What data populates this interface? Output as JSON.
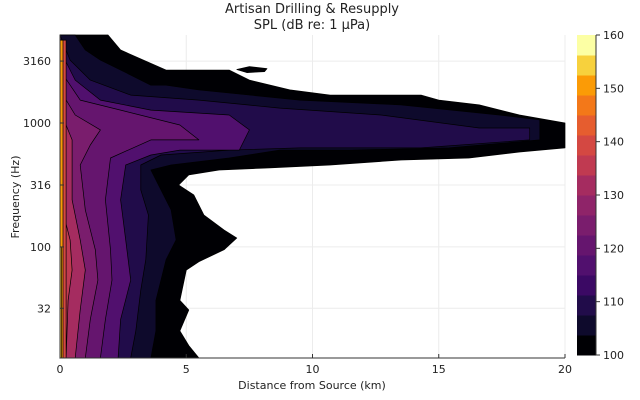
{
  "chart_data": {
    "type": "contourf",
    "title": "Artisan Drilling & Resupply",
    "subtitle": "SPL (dB re: 1 μPa)",
    "xlabel": "Distance from Source (km)",
    "ylabel": "Frequency (Hz)",
    "xlim": [
      0,
      20
    ],
    "ylim": [
      12.7,
      5130
    ],
    "yscale": "log",
    "xticks": [
      0,
      5,
      10,
      15,
      20
    ],
    "yticks": [
      32,
      100,
      316,
      1000,
      3160
    ],
    "grid": true,
    "colorbar": {
      "range": [
        100,
        160
      ],
      "ticks": [
        100,
        110,
        120,
        130,
        140,
        150,
        160
      ],
      "levels": 16,
      "colors": [
        "#000004",
        "#0e0a2c",
        "#210c4a",
        "#3b0964",
        "#51106e",
        "#65156e",
        "#7a1d6d",
        "#8f2469",
        "#a52c60",
        "#c03a51",
        "#d44842",
        "#e65d2f",
        "#f37819",
        "#fb9b06",
        "#f7d13d",
        "#fcffa4"
      ]
    },
    "regions": [
      {
        "level": 100,
        "points": [
          [
            0,
            12.7
          ],
          [
            0,
            5130
          ],
          [
            1.9,
            5130
          ],
          [
            2.4,
            3880
          ],
          [
            4.2,
            2670
          ],
          [
            6.7,
            2670
          ],
          [
            7.5,
            2220
          ],
          [
            9.1,
            1850
          ],
          [
            10.7,
            1680
          ],
          [
            14.3,
            1680
          ],
          [
            15.0,
            1530
          ],
          [
            16.6,
            1400
          ],
          [
            18.2,
            1160
          ],
          [
            20,
            1000
          ],
          [
            20,
            630
          ],
          [
            18.2,
            583
          ],
          [
            16.2,
            522
          ],
          [
            13.5,
            503
          ],
          [
            10.7,
            458
          ],
          [
            8.3,
            434
          ],
          [
            6.3,
            418
          ],
          [
            5.1,
            381
          ],
          [
            4.7,
            316
          ],
          [
            5.3,
            263
          ],
          [
            5.7,
            181
          ],
          [
            6.5,
            137
          ],
          [
            7.0,
            118
          ],
          [
            6.5,
            95
          ],
          [
            5.5,
            76
          ],
          [
            5.0,
            65
          ],
          [
            4.75,
            37
          ],
          [
            5.1,
            31
          ],
          [
            4.75,
            21
          ],
          [
            5.1,
            16
          ],
          [
            5.5,
            12.7
          ]
        ]
      },
      {
        "level": 100,
        "points": [
          [
            7.0,
            2700
          ],
          [
            7.5,
            2850
          ],
          [
            8.2,
            2750
          ],
          [
            8.1,
            2600
          ],
          [
            7.4,
            2550
          ]
        ]
      },
      {
        "level": 105,
        "points": [
          [
            0,
            12.7
          ],
          [
            0,
            5130
          ],
          [
            0.6,
            5130
          ],
          [
            1.0,
            3880
          ],
          [
            1.6,
            3220
          ],
          [
            2.8,
            2440
          ],
          [
            3.6,
            2020
          ],
          [
            4.2,
            2020
          ],
          [
            5.5,
            1850
          ],
          [
            9.5,
            1530
          ],
          [
            13.5,
            1400
          ],
          [
            17.4,
            1160
          ],
          [
            19.0,
            1060
          ],
          [
            19.0,
            730
          ],
          [
            15.4,
            630
          ],
          [
            11.5,
            605
          ],
          [
            8.7,
            605
          ],
          [
            6.7,
            522
          ],
          [
            4.4,
            458
          ],
          [
            3.6,
            418
          ],
          [
            4.0,
            288
          ],
          [
            4.4,
            199
          ],
          [
            4.6,
            114
          ],
          [
            4.2,
            79
          ],
          [
            4.0,
            54
          ],
          [
            3.8,
            37
          ],
          [
            3.8,
            21
          ],
          [
            3.6,
            12.7
          ]
        ]
      },
      {
        "level": 110,
        "points": [
          [
            0,
            12.7
          ],
          [
            0,
            5130
          ],
          [
            0.4,
            3220
          ],
          [
            1.2,
            2220
          ],
          [
            2.8,
            1680
          ],
          [
            5.5,
            1530
          ],
          [
            8.7,
            1320
          ],
          [
            12.7,
            1160
          ],
          [
            16.6,
            912
          ],
          [
            18.6,
            912
          ],
          [
            18.6,
            730
          ],
          [
            14.3,
            630
          ],
          [
            9.5,
            630
          ],
          [
            6.7,
            605
          ],
          [
            4.0,
            552
          ],
          [
            3.2,
            458
          ],
          [
            3.2,
            288
          ],
          [
            3.5,
            181
          ],
          [
            3.4,
            79
          ],
          [
            3.2,
            45
          ],
          [
            3.0,
            21
          ],
          [
            2.8,
            12.7
          ]
        ]
      },
      {
        "level": 115,
        "points": [
          [
            0,
            12.7
          ],
          [
            0,
            3880
          ],
          [
            0.6,
            2220
          ],
          [
            1.6,
            1530
          ],
          [
            3.6,
            1270
          ],
          [
            6.7,
            1160
          ],
          [
            7.5,
            880
          ],
          [
            7.1,
            605
          ],
          [
            4.75,
            605
          ],
          [
            3.6,
            552
          ],
          [
            2.6,
            458
          ],
          [
            2.4,
            240
          ],
          [
            2.6,
            114
          ],
          [
            2.8,
            54
          ],
          [
            2.4,
            26
          ],
          [
            2.3,
            12.7
          ]
        ]
      },
      {
        "level": 120,
        "points": [
          [
            0,
            12.7
          ],
          [
            0,
            2670
          ],
          [
            0.8,
            1530
          ],
          [
            2.4,
            1270
          ],
          [
            4.75,
            963
          ],
          [
            5.5,
            730
          ],
          [
            3.6,
            730
          ],
          [
            2.0,
            522
          ],
          [
            1.8,
            240
          ],
          [
            2.0,
            95
          ],
          [
            2.06,
            54
          ],
          [
            1.8,
            26
          ],
          [
            1.6,
            12.7
          ]
        ]
      },
      {
        "level": 125,
        "points": [
          [
            0,
            12.7
          ],
          [
            0,
            1850
          ],
          [
            0.6,
            1160
          ],
          [
            1.6,
            880
          ],
          [
            1.2,
            665
          ],
          [
            0.8,
            458
          ],
          [
            1.0,
            199
          ],
          [
            1.4,
            95
          ],
          [
            1.5,
            54
          ],
          [
            1.2,
            26
          ],
          [
            1.0,
            12.7
          ]
        ]
      },
      {
        "level": 130,
        "points": [
          [
            0,
            12.7
          ],
          [
            0,
            1270
          ],
          [
            0.48,
            730
          ],
          [
            0.48,
            240
          ],
          [
            0.8,
            114
          ],
          [
            1.0,
            65
          ],
          [
            0.8,
            31
          ],
          [
            0.6,
            12.7
          ]
        ]
      },
      {
        "level": 135,
        "points": [
          [
            0,
            12.7
          ],
          [
            0,
            240
          ],
          [
            0.4,
            114
          ],
          [
            0.48,
            65
          ],
          [
            0.32,
            37
          ],
          [
            0.24,
            12.7
          ]
        ]
      },
      {
        "level": 140,
        "points": [
          [
            0,
            12.7
          ],
          [
            0,
            4670
          ],
          [
            0.24,
            4670
          ],
          [
            0.24,
            12.7
          ]
        ]
      },
      {
        "level": 150,
        "points": [
          [
            0,
            12.7
          ],
          [
            0,
            4670
          ],
          [
            0.12,
            4670
          ],
          [
            0.12,
            12.7
          ]
        ]
      },
      {
        "level": 155,
        "points": [
          [
            0,
            12.7
          ],
          [
            0,
            100
          ],
          [
            0.05,
            100
          ],
          [
            0.05,
            12.7
          ]
        ]
      }
    ]
  }
}
